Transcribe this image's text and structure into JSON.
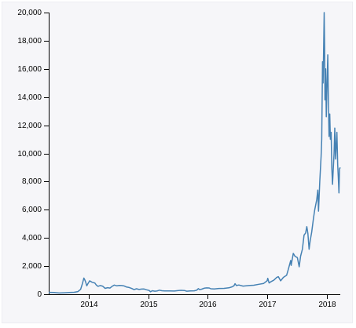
{
  "chart_data": {
    "type": "line",
    "title": "",
    "xlabel": "",
    "ylabel": "",
    "x_start": "2013-04-28",
    "x_end": "2018-03-26",
    "ylim": [
      0,
      20000
    ],
    "y_ticks": [
      {
        "value": 0,
        "label": "0"
      },
      {
        "value": 2000,
        "label": "2,000"
      },
      {
        "value": 4000,
        "label": "4,000"
      },
      {
        "value": 6000,
        "label": "6,000"
      },
      {
        "value": 8000,
        "label": "8,000"
      },
      {
        "value": 10000,
        "label": "10,000"
      },
      {
        "value": 12000,
        "label": "12,000"
      },
      {
        "value": 14000,
        "label": "14,000"
      },
      {
        "value": 16000,
        "label": "16,000"
      },
      {
        "value": 18000,
        "label": "18,000"
      },
      {
        "value": 20000,
        "label": "20,000"
      }
    ],
    "x_ticks": [
      {
        "value": "2014-01-01",
        "label": "2014"
      },
      {
        "value": "2015-01-01",
        "label": "2015"
      },
      {
        "value": "2016-01-01",
        "label": "2016"
      },
      {
        "value": "2017-01-01",
        "label": "2017"
      },
      {
        "value": "2018-01-01",
        "label": "2018"
      }
    ],
    "grid": false,
    "line_color": "#4682b4",
    "series": [
      {
        "points": [
          [
            "2013-04-28",
            135
          ],
          [
            "2013-06-01",
            120
          ],
          [
            "2013-07-01",
            90
          ],
          [
            "2013-08-01",
            105
          ],
          [
            "2013-09-01",
            125
          ],
          [
            "2013-10-01",
            140
          ],
          [
            "2013-10-25",
            190
          ],
          [
            "2013-11-10",
            350
          ],
          [
            "2013-11-20",
            700
          ],
          [
            "2013-11-30",
            1150
          ],
          [
            "2013-12-05",
            1050
          ],
          [
            "2013-12-10",
            900
          ],
          [
            "2013-12-18",
            600
          ],
          [
            "2013-12-25",
            750
          ],
          [
            "2014-01-05",
            950
          ],
          [
            "2014-01-20",
            850
          ],
          [
            "2014-02-05",
            800
          ],
          [
            "2014-02-15",
            650
          ],
          [
            "2014-02-25",
            560
          ],
          [
            "2014-03-10",
            620
          ],
          [
            "2014-03-25",
            580
          ],
          [
            "2014-04-10",
            420
          ],
          [
            "2014-04-25",
            470
          ],
          [
            "2014-05-10",
            440
          ],
          [
            "2014-05-25",
            580
          ],
          [
            "2014-06-05",
            650
          ],
          [
            "2014-06-20",
            600
          ],
          [
            "2014-07-05",
            630
          ],
          [
            "2014-07-20",
            620
          ],
          [
            "2014-08-05",
            590
          ],
          [
            "2014-08-20",
            510
          ],
          [
            "2014-09-05",
            480
          ],
          [
            "2014-09-20",
            410
          ],
          [
            "2014-10-05",
            330
          ],
          [
            "2014-10-20",
            390
          ],
          [
            "2014-11-05",
            340
          ],
          [
            "2014-11-20",
            370
          ],
          [
            "2014-12-05",
            375
          ],
          [
            "2014-12-20",
            320
          ],
          [
            "2015-01-05",
            275
          ],
          [
            "2015-01-14",
            180
          ],
          [
            "2015-01-25",
            250
          ],
          [
            "2015-02-10",
            220
          ],
          [
            "2015-02-25",
            240
          ],
          [
            "2015-03-10",
            290
          ],
          [
            "2015-03-25",
            250
          ],
          [
            "2015-04-10",
            235
          ],
          [
            "2015-05-10",
            240
          ],
          [
            "2015-06-10",
            230
          ],
          [
            "2015-07-05",
            270
          ],
          [
            "2015-07-20",
            280
          ],
          [
            "2015-08-10",
            265
          ],
          [
            "2015-08-25",
            220
          ],
          [
            "2015-09-15",
            235
          ],
          [
            "2015-10-10",
            245
          ],
          [
            "2015-10-25",
            290
          ],
          [
            "2015-11-04",
            400
          ],
          [
            "2015-11-12",
            330
          ],
          [
            "2015-11-25",
            360
          ],
          [
            "2015-12-10",
            430
          ],
          [
            "2015-12-25",
            450
          ],
          [
            "2016-01-10",
            445
          ],
          [
            "2016-01-20",
            390
          ],
          [
            "2016-02-10",
            375
          ],
          [
            "2016-03-10",
            410
          ],
          [
            "2016-04-10",
            420
          ],
          [
            "2016-05-10",
            455
          ],
          [
            "2016-05-30",
            530
          ],
          [
            "2016-06-10",
            600
          ],
          [
            "2016-06-17",
            750
          ],
          [
            "2016-06-25",
            620
          ],
          [
            "2016-07-10",
            660
          ],
          [
            "2016-08-05",
            580
          ],
          [
            "2016-09-10",
            620
          ],
          [
            "2016-10-10",
            640
          ],
          [
            "2016-11-10",
            710
          ],
          [
            "2016-12-10",
            770
          ],
          [
            "2016-12-31",
            960
          ],
          [
            "2017-01-04",
            1130
          ],
          [
            "2017-01-12",
            800
          ],
          [
            "2017-01-25",
            900
          ],
          [
            "2017-02-10",
            1000
          ],
          [
            "2017-02-28",
            1190
          ],
          [
            "2017-03-10",
            1250
          ],
          [
            "2017-03-24",
            950
          ],
          [
            "2017-04-10",
            1200
          ],
          [
            "2017-04-30",
            1350
          ],
          [
            "2017-05-10",
            1750
          ],
          [
            "2017-05-25",
            2400
          ],
          [
            "2017-05-28",
            2050
          ],
          [
            "2017-06-10",
            2900
          ],
          [
            "2017-06-20",
            2700
          ],
          [
            "2017-07-05",
            2600
          ],
          [
            "2017-07-16",
            1950
          ],
          [
            "2017-07-25",
            2700
          ],
          [
            "2017-08-05",
            3200
          ],
          [
            "2017-08-15",
            4200
          ],
          [
            "2017-08-25",
            4350
          ],
          [
            "2017-09-01",
            4800
          ],
          [
            "2017-09-08",
            4300
          ],
          [
            "2017-09-15",
            3200
          ],
          [
            "2017-09-22",
            3800
          ],
          [
            "2017-10-01",
            4400
          ],
          [
            "2017-10-12",
            5400
          ],
          [
            "2017-10-20",
            6000
          ],
          [
            "2017-11-01",
            6700
          ],
          [
            "2017-11-08",
            7400
          ],
          [
            "2017-11-12",
            5900
          ],
          [
            "2017-11-20",
            8000
          ],
          [
            "2017-11-28",
            9800
          ],
          [
            "2017-12-02",
            11000
          ],
          [
            "2017-12-07",
            16500
          ],
          [
            "2017-12-10",
            15000
          ],
          [
            "2017-12-13",
            17000
          ],
          [
            "2017-12-17",
            20000
          ],
          [
            "2017-12-20",
            17500
          ],
          [
            "2017-12-22",
            13800
          ],
          [
            "2017-12-26",
            16000
          ],
          [
            "2017-12-30",
            12600
          ],
          [
            "2018-01-04",
            15000
          ],
          [
            "2018-01-08",
            17000
          ],
          [
            "2018-01-12",
            13500
          ],
          [
            "2018-01-16",
            11200
          ],
          [
            "2018-01-20",
            12800
          ],
          [
            "2018-01-24",
            11000
          ],
          [
            "2018-01-29",
            11500
          ],
          [
            "2018-02-02",
            9000
          ],
          [
            "2018-02-06",
            7800
          ],
          [
            "2018-02-10",
            8700
          ],
          [
            "2018-02-16",
            10000
          ],
          [
            "2018-02-20",
            11800
          ],
          [
            "2018-02-25",
            9600
          ],
          [
            "2018-03-05",
            11500
          ],
          [
            "2018-03-10",
            9200
          ],
          [
            "2018-03-14",
            8300
          ],
          [
            "2018-03-18",
            7200
          ],
          [
            "2018-03-21",
            8900
          ],
          [
            "2018-03-26",
            9000
          ]
        ]
      }
    ]
  }
}
